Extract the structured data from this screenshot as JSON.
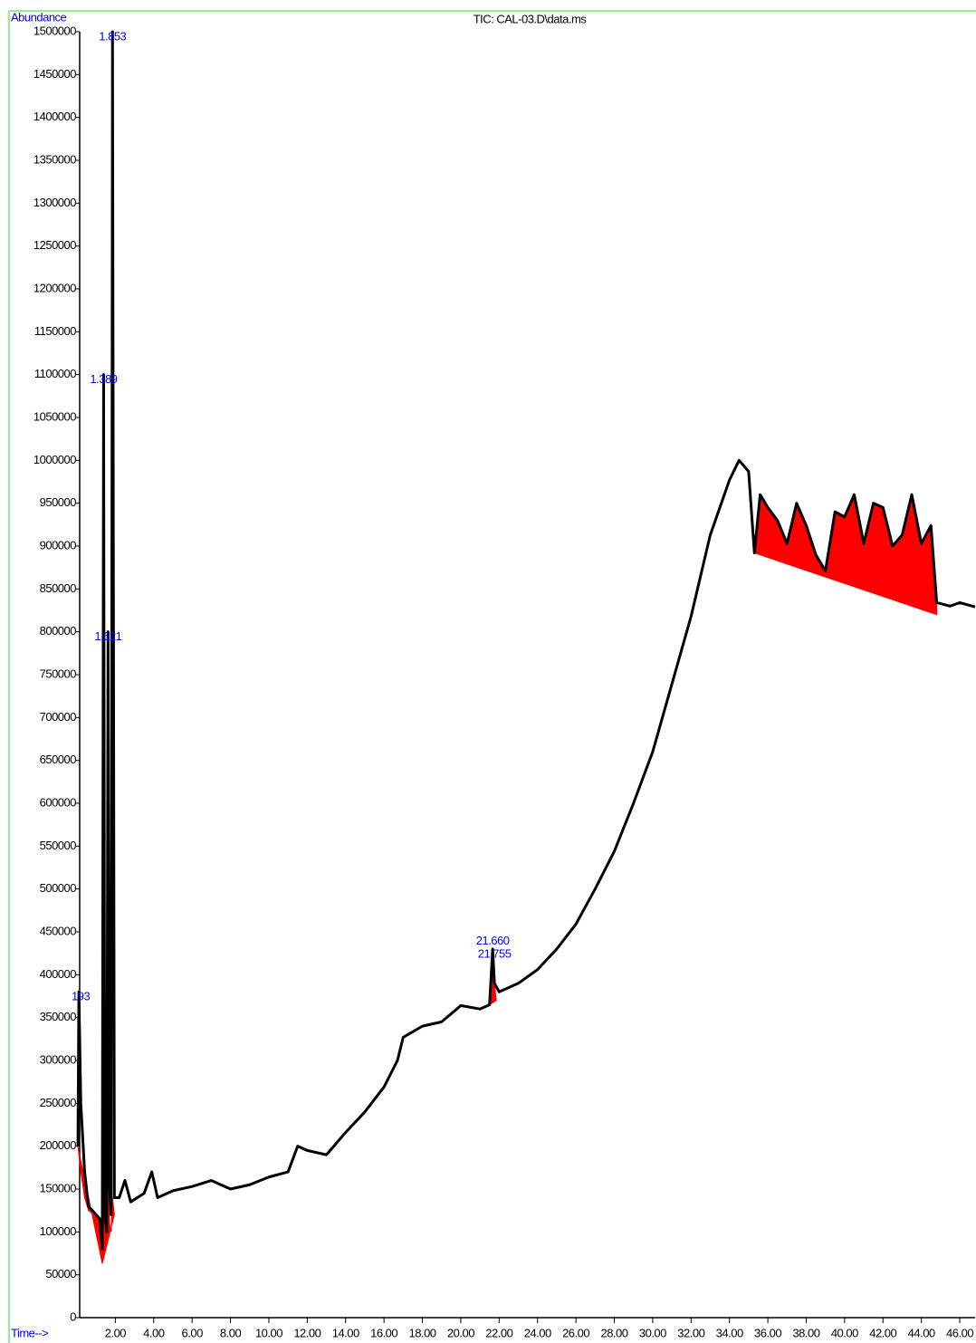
{
  "chart_data": {
    "type": "line",
    "title": "TIC: CAL-03.D\\data.ms",
    "y_label": "Abundance",
    "x_label": "Time-->",
    "color": "#000000",
    "x": [
      0.05,
      0.1,
      0.2,
      0.4,
      0.6,
      1.0,
      1.2,
      1.32,
      1.389,
      1.45,
      1.55,
      1.621,
      1.7,
      1.78,
      1.853,
      1.95,
      2.2,
      2.5,
      2.8,
      3.5,
      3.9,
      4.2,
      5,
      6,
      7,
      8,
      9,
      10,
      11,
      11.5,
      12,
      13,
      14,
      15,
      16,
      16.7,
      17,
      18,
      19,
      20,
      21,
      21.5,
      21.66,
      21.755,
      22,
      23,
      24,
      25,
      26,
      27,
      28,
      29,
      30,
      31,
      32,
      33,
      34,
      34.5,
      35,
      35.3,
      35.6,
      36,
      36.5,
      37,
      37.5,
      38,
      38.5,
      39,
      39.5,
      40,
      40.5,
      41,
      41.5,
      42,
      42.5,
      43,
      43.5,
      44,
      44.5,
      44.8,
      45.5,
      46,
      46.8
    ],
    "values": [
      200000,
      380000,
      250000,
      170000,
      130000,
      120000,
      115000,
      80000,
      1100000,
      120000,
      100000,
      800000,
      150000,
      120000,
      1500000,
      140000,
      140000,
      160000,
      135000,
      145000,
      170000,
      140000,
      148000,
      153000,
      160000,
      150000,
      155000,
      164000,
      170000,
      200000,
      195000,
      190000,
      216000,
      240000,
      269000,
      300000,
      327000,
      340000,
      345000,
      364000,
      360000,
      365000,
      430000,
      390000,
      380000,
      390000,
      406000,
      430000,
      459000,
      500000,
      544000,
      600000,
      660000,
      739000,
      818000,
      913000,
      977000,
      1000000,
      987000,
      892000,
      960000,
      945000,
      930000,
      903000,
      950000,
      924000,
      890000,
      871000,
      940000,
      934000,
      960000,
      903000,
      950000,
      945000,
      900000,
      913000,
      960000,
      903000,
      924000,
      834000,
      830000,
      834000,
      829000
    ],
    "peak_color": "#ff0000",
    "peak_areas": [
      {
        "x": [
          0.05,
          0.2,
          0.4,
          0.6,
          1.0,
          1.2,
          1.32
        ],
        "y": [
          200000,
          170000,
          140000,
          125000,
          118000,
          112000,
          63000
        ]
      },
      {
        "x": [
          1.32,
          1.389,
          1.45,
          1.55,
          1.621,
          1.7,
          1.78,
          1.853,
          1.95
        ],
        "y": [
          63000,
          390000,
          110000,
          90000,
          180000,
          110000,
          100000,
          140000,
          120000
        ]
      },
      {
        "x": [
          21.5,
          21.66,
          21.755,
          21.85
        ],
        "y": [
          365000,
          430000,
          390000,
          370000
        ]
      },
      {
        "x": [
          35.3,
          35.6,
          36,
          36.5,
          37,
          37.5,
          38,
          38.5,
          39,
          39.5,
          40,
          40.5,
          41,
          41.5,
          42,
          42.5,
          43,
          43.5,
          44,
          44.5,
          44.8,
          44.8,
          35.3
        ],
        "y": [
          892000,
          960000,
          945000,
          930000,
          903000,
          950000,
          924000,
          890000,
          871000,
          940000,
          934000,
          960000,
          903000,
          950000,
          945000,
          900000,
          913000,
          960000,
          903000,
          924000,
          834000,
          820000,
          892000
        ]
      }
    ],
    "annotations_color": "#0000ff",
    "annotations": [
      {
        "text": "193",
        "x": 0.193,
        "y": 380000
      },
      {
        "text": "1.389",
        "x": 1.389,
        "y": 1100000
      },
      {
        "text": "1.621",
        "x": 1.621,
        "y": 800000
      },
      {
        "text": "1.853",
        "x": 1.853,
        "y": 1500000
      },
      {
        "text": "21.660",
        "x": 21.66,
        "y": 445000
      },
      {
        "text": "21.755",
        "x": 21.755,
        "y": 430000
      }
    ],
    "xlim": [
      0,
      46.8
    ],
    "ylim": [
      0,
      1500000
    ],
    "xticks": [
      {
        "value": 2,
        "label": "2.00"
      },
      {
        "value": 4,
        "label": "4.00"
      },
      {
        "value": 6,
        "label": "6.00"
      },
      {
        "value": 8,
        "label": "8.00"
      },
      {
        "value": 10,
        "label": "10.00"
      },
      {
        "value": 12,
        "label": "12.00"
      },
      {
        "value": 14,
        "label": "14.00"
      },
      {
        "value": 16,
        "label": "16.00"
      },
      {
        "value": 18,
        "label": "18.00"
      },
      {
        "value": 20,
        "label": "20.00"
      },
      {
        "value": 22,
        "label": "22.00"
      },
      {
        "value": 24,
        "label": "24.00"
      },
      {
        "value": 26,
        "label": "26.00"
      },
      {
        "value": 28,
        "label": "28.00"
      },
      {
        "value": 30,
        "label": "30.00"
      },
      {
        "value": 32,
        "label": "32.00"
      },
      {
        "value": 34,
        "label": "34.00"
      },
      {
        "value": 36,
        "label": "36.00"
      },
      {
        "value": 38,
        "label": "38.00"
      },
      {
        "value": 40,
        "label": "40.00"
      },
      {
        "value": 42,
        "label": "42.00"
      },
      {
        "value": 44,
        "label": "44.00"
      },
      {
        "value": 46,
        "label": "46.00"
      }
    ],
    "yticks": [
      0,
      50000,
      100000,
      150000,
      200000,
      250000,
      300000,
      350000,
      400000,
      450000,
      500000,
      550000,
      600000,
      650000,
      700000,
      750000,
      800000,
      850000,
      900000,
      950000,
      1000000,
      1050000,
      1100000,
      1150000,
      1200000,
      1250000,
      1300000,
      1350000,
      1400000,
      1450000,
      1500000
    ]
  }
}
